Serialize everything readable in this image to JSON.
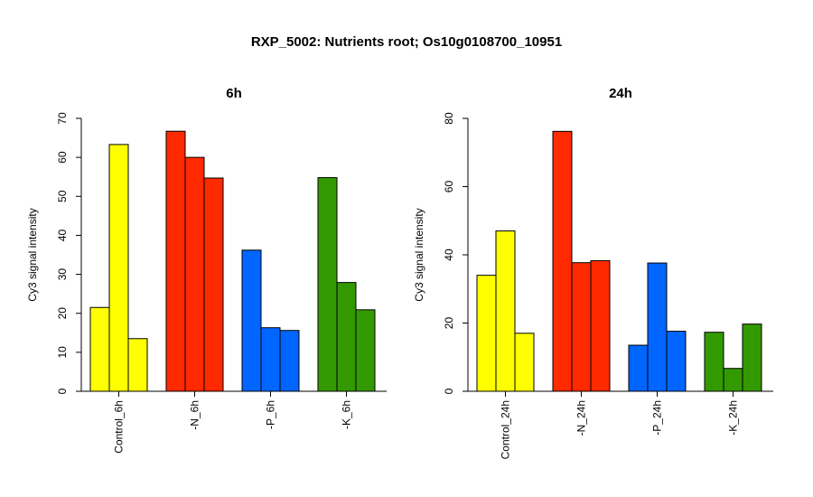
{
  "title": "RXP_5002: Nutrients root; Os10g0108700_10951",
  "chart_data": [
    {
      "type": "bar",
      "title": "6h",
      "ylabel": "Cy3 signal intensity",
      "xlabel": "",
      "ylim": [
        0,
        70
      ],
      "yticks": [
        0,
        10,
        20,
        30,
        40,
        50,
        60,
        70
      ],
      "categories": [
        "Control_6h",
        "-N_6h",
        "-P_6h",
        "-K_6h"
      ],
      "colors": [
        "#FFFF00",
        "#FF2A00",
        "#0066FF",
        "#339900"
      ],
      "values": [
        [
          21.5,
          63.3,
          13.5
        ],
        [
          66.7,
          60.0,
          54.7
        ],
        [
          36.2,
          16.3,
          15.6
        ],
        [
          54.8,
          27.9,
          20.9
        ]
      ],
      "grid": false
    },
    {
      "type": "bar",
      "title": "24h",
      "ylabel": "Cy3 signal intensity",
      "xlabel": "",
      "ylim": [
        0,
        80
      ],
      "yticks": [
        0,
        20,
        40,
        60,
        80
      ],
      "categories": [
        "Control_24h",
        "-N_24h",
        "-P_24h",
        "-K_24h"
      ],
      "colors": [
        "#FFFF00",
        "#FF2A00",
        "#0066FF",
        "#339900"
      ],
      "values": [
        [
          34.0,
          47.0,
          17.0
        ],
        [
          76.2,
          37.7,
          38.3
        ],
        [
          13.5,
          37.6,
          17.6
        ],
        [
          17.3,
          6.7,
          19.7
        ]
      ],
      "grid": false
    }
  ]
}
